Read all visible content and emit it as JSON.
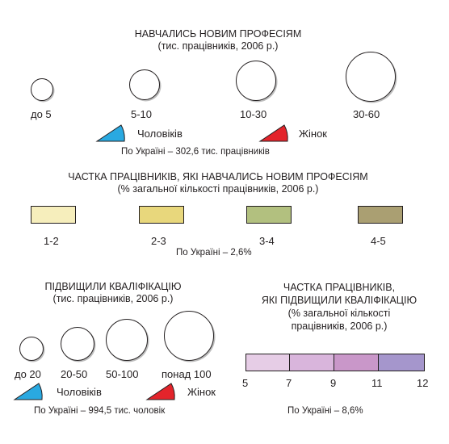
{
  "section1": {
    "title_line1": "НАВЧАЛИСЬ НОВИМ ПРОФЕСІЯМ",
    "title_line2": "(тис. працівників, 2006 р.)",
    "circles": [
      {
        "label": "до 5"
      },
      {
        "label": "5-10"
      },
      {
        "label": "10-30"
      },
      {
        "label": "30-60"
      }
    ],
    "men_label": "Чоловіків",
    "women_label": "Жінок",
    "note": "По Україні – 302,6 тис. працівників"
  },
  "section2": {
    "title_line1": "ЧАСТКА ПРАЦІВНИКІВ, ЯКІ НАВЧАЛИСЬ НОВИМ ПРОФЕСІЯМ",
    "title_line2": "(% загальної кількості працівників, 2006 р.)",
    "classes": [
      {
        "label": "1-2",
        "color": "#f6eebc"
      },
      {
        "label": "2-3",
        "color": "#e8d77c"
      },
      {
        "label": "3-4",
        "color": "#b2c07f"
      },
      {
        "label": "4-5",
        "color": "#aa9f72"
      }
    ],
    "note": "По Україні – 2,6%"
  },
  "section3": {
    "title_line1": "ПІДВИЩИЛИ КВАЛІФІКАЦІЮ",
    "title_line2": "(тис. працівників, 2006 р.)",
    "circles": [
      {
        "label": "до 20"
      },
      {
        "label": "20-50"
      },
      {
        "label": "50-100"
      },
      {
        "label": "понад 100"
      }
    ],
    "men_label": "Чоловіків",
    "women_label": "Жінок",
    "note": "По Україні – 994,5 тис. чоловік"
  },
  "section4": {
    "title_line1": "ЧАСТКА ПРАЦІВНИКІВ,",
    "title_line2": "ЯКІ ПІДВИЩИЛИ КВАЛІФІКАЦІЮ",
    "title_line3": "(% загальної кількості",
    "title_line4": "працівників, 2006 р.)",
    "scale_colors": [
      "#e6cde6",
      "#d9b5dc",
      "#c997c9",
      "#a596cc"
    ],
    "ticks": [
      "5",
      "7",
      "9",
      "11",
      "12"
    ],
    "note": "По Україні – 8,6%"
  },
  "colors": {
    "men": "#29a9e1",
    "women": "#e3242b"
  }
}
